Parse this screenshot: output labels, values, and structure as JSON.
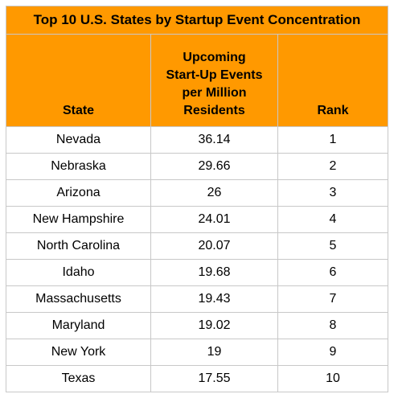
{
  "chart_data": {
    "type": "table",
    "title": "Top 10 U.S. States by Startup Event Concentration",
    "columns": [
      {
        "key": "state",
        "lines": [
          "State"
        ]
      },
      {
        "key": "events",
        "lines": [
          "Upcoming",
          "Start-Up Events",
          "per Million",
          "Residents"
        ]
      },
      {
        "key": "rank",
        "lines": [
          "Rank"
        ]
      }
    ],
    "rows": [
      {
        "state": "Nevada",
        "events": "36.14",
        "rank": "1"
      },
      {
        "state": "Nebraska",
        "events": "29.66",
        "rank": "2"
      },
      {
        "state": "Arizona",
        "events": "26",
        "rank": "3"
      },
      {
        "state": "New Hampshire",
        "events": "24.01",
        "rank": "4"
      },
      {
        "state": "North Carolina",
        "events": "20.07",
        "rank": "5"
      },
      {
        "state": "Idaho",
        "events": "19.68",
        "rank": "6"
      },
      {
        "state": "Massachusetts",
        "events": "19.43",
        "rank": "7"
      },
      {
        "state": "Maryland",
        "events": "19.02",
        "rank": "8"
      },
      {
        "state": "New York",
        "events": "19",
        "rank": "9"
      },
      {
        "state": "Texas",
        "events": "17.55",
        "rank": "10"
      }
    ],
    "colors": {
      "header_bg": "#ff9900",
      "border": "#c8c8c8",
      "body_bg": "#ffffff"
    }
  }
}
